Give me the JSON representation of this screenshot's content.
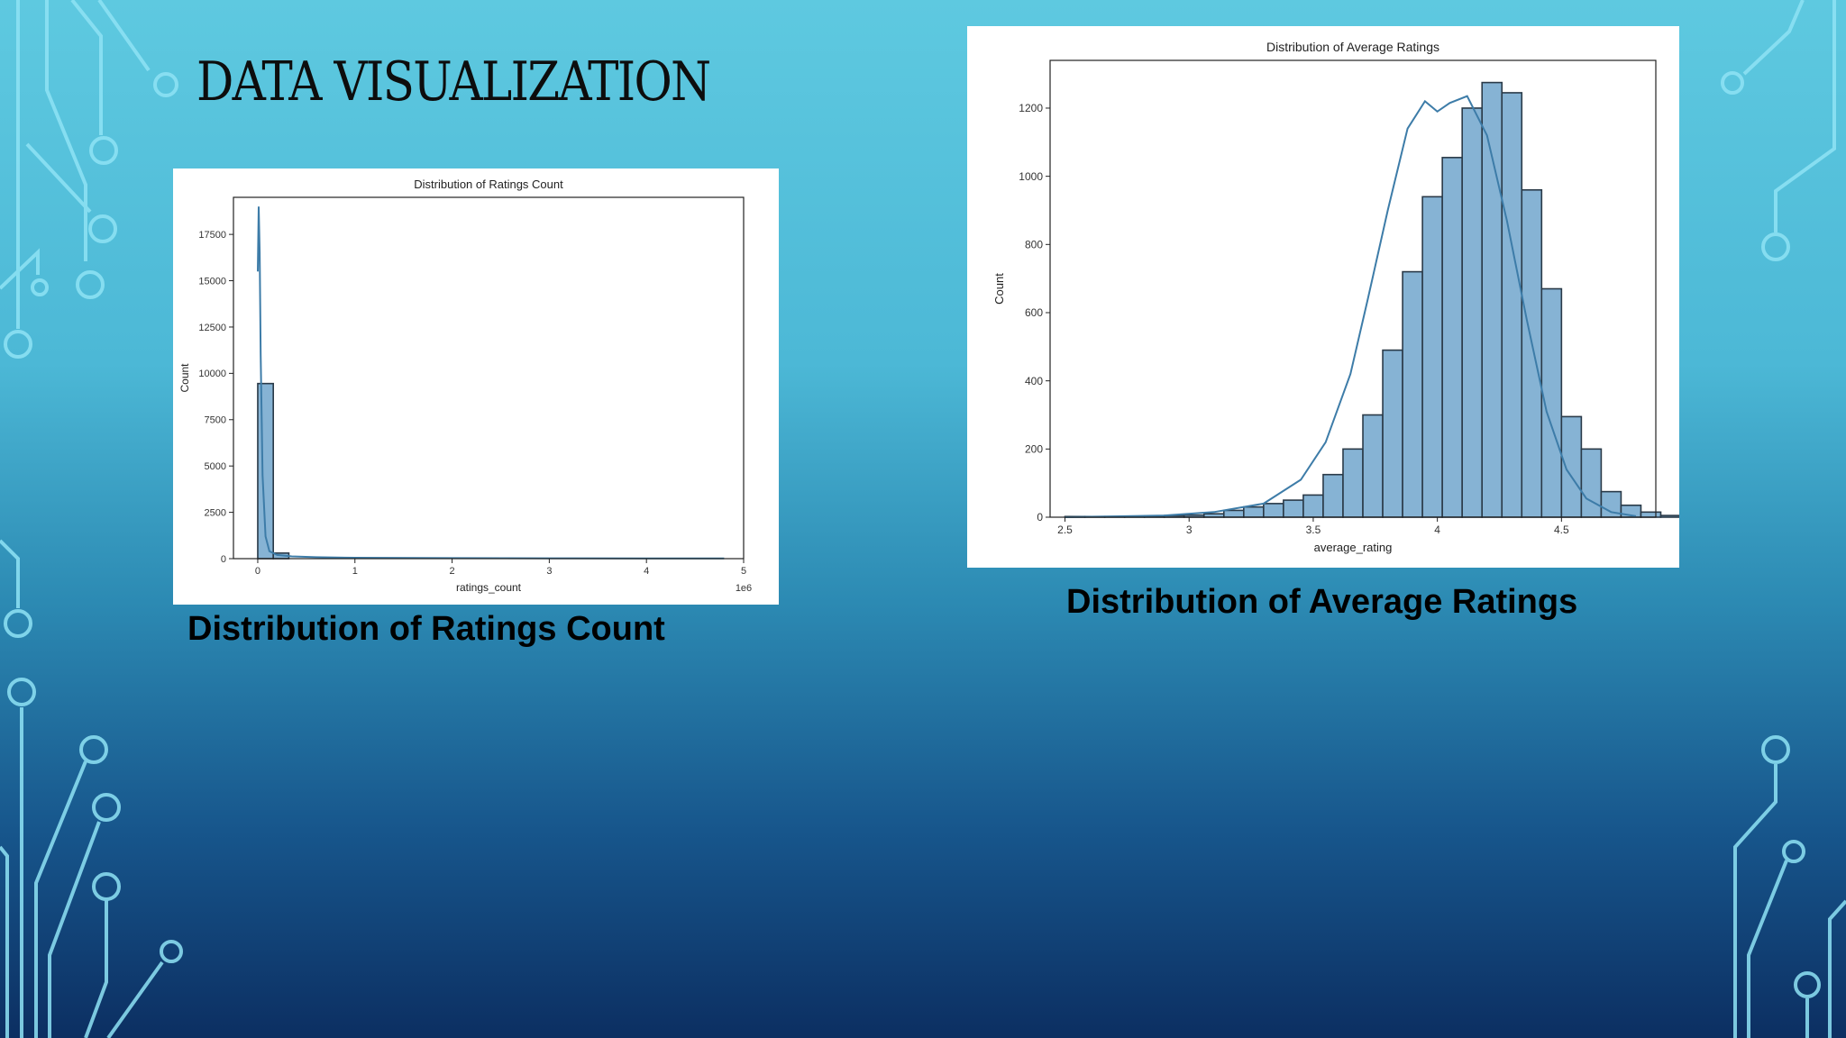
{
  "slide": {
    "title": "DATA VISUALIZATION",
    "caption_left": "Distribution of Ratings Count",
    "caption_right": "Distribution of Average Ratings"
  },
  "colors": {
    "bar_fill": "#86b3d4",
    "bar_stroke": "#2a3a48",
    "kde_line": "#3d7ca8",
    "circuit_line": "#8fe3f5"
  },
  "chart_data": [
    {
      "type": "bar",
      "title": "Distribution of Ratings Count",
      "xlabel": "ratings_count",
      "ylabel": "Count",
      "x_offset_label": "1e6",
      "xlim": [
        -0.25,
        5
      ],
      "ylim": [
        0,
        19500
      ],
      "x_ticks": [
        0,
        1,
        2,
        3,
        4,
        5
      ],
      "y_ticks": [
        0,
        2500,
        5000,
        7500,
        10000,
        12500,
        15000,
        17500
      ],
      "bin_edges": [
        0,
        0.16,
        0.32
      ],
      "values": [
        9450,
        300
      ],
      "kde": {
        "x": [
          0,
          0.01,
          0.02,
          0.03,
          0.05,
          0.08,
          0.12,
          0.2,
          0.35,
          0.6,
          1.0,
          2.0,
          3.0,
          4.0,
          4.8
        ],
        "y": [
          15500,
          19000,
          16500,
          11000,
          4500,
          1200,
          400,
          200,
          120,
          80,
          50,
          30,
          20,
          15,
          10
        ]
      },
      "grid": false,
      "legend": "none"
    },
    {
      "type": "bar",
      "title": "Distribution of Average Ratings",
      "xlabel": "average_rating",
      "ylabel": "Count",
      "xlim": [
        2.44,
        4.88
      ],
      "ylim": [
        0,
        1340
      ],
      "x_ticks": [
        2.5,
        3.0,
        3.5,
        4.0,
        4.5
      ],
      "y_ticks": [
        0,
        200,
        400,
        600,
        800,
        1000,
        1200
      ],
      "bin_start": 2.5,
      "bin_width": 0.08,
      "values": [
        2,
        2,
        2,
        3,
        4,
        5,
        6,
        10,
        20,
        30,
        40,
        50,
        65,
        125,
        200,
        300,
        490,
        720,
        940,
        1055,
        1200,
        1275,
        1245,
        960,
        670,
        295,
        200,
        75,
        35,
        15,
        5
      ],
      "kde": {
        "x": [
          2.5,
          2.9,
          3.1,
          3.3,
          3.45,
          3.55,
          3.65,
          3.72,
          3.8,
          3.88,
          3.95,
          4.0,
          4.05,
          4.12,
          4.2,
          4.28,
          4.36,
          4.44,
          4.52,
          4.6,
          4.7,
          4.8
        ],
        "y": [
          0,
          5,
          15,
          40,
          110,
          220,
          420,
          640,
          900,
          1140,
          1220,
          1190,
          1215,
          1235,
          1120,
          870,
          580,
          310,
          140,
          55,
          15,
          3
        ]
      },
      "grid": false,
      "legend": "none"
    }
  ]
}
